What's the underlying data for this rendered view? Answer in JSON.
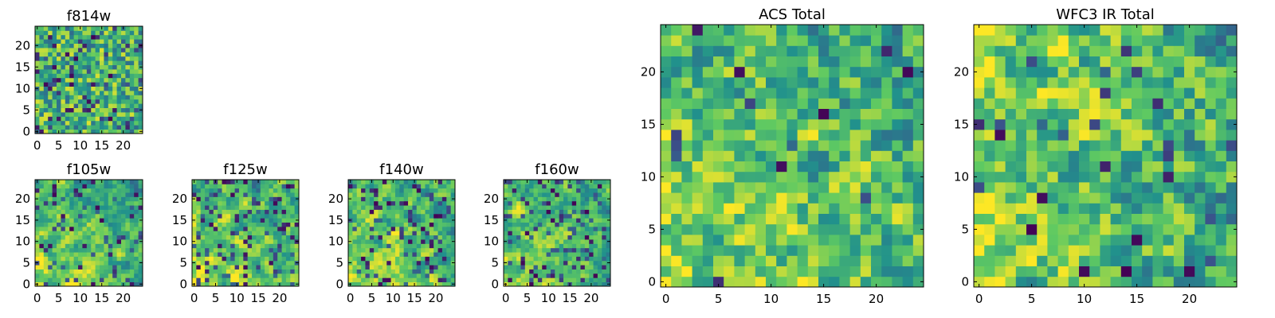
{
  "colormap": [
    "#440154",
    "#3b528b",
    "#21918c",
    "#5ec962",
    "#fde725"
  ],
  "chart_data": [
    {
      "type": "heatmap",
      "title": "f814w",
      "grid": false,
      "xlim": [
        -0.5,
        24.5
      ],
      "ylim": [
        -0.5,
        24.5
      ],
      "size": 25,
      "xticks": [
        "0",
        "5",
        "10",
        "15",
        "20"
      ],
      "yticks": [
        "0",
        "5",
        "10",
        "15",
        "20"
      ],
      "texture": "noisy",
      "smooth": 0.0,
      "seed": 11,
      "darkness": 0.1,
      "bright_corner": "none"
    },
    {
      "type": "heatmap",
      "title": "f105w",
      "grid": false,
      "xlim": [
        -0.5,
        24.5
      ],
      "ylim": [
        -0.5,
        24.5
      ],
      "size": 25,
      "xticks": [
        "0",
        "5",
        "10",
        "15",
        "20"
      ],
      "yticks": [
        "0",
        "5",
        "10",
        "15",
        "20"
      ],
      "texture": "smooth",
      "smooth": 0.55,
      "seed": 23,
      "darkness": 0.12,
      "bright_corner": "bottom-left"
    },
    {
      "type": "heatmap",
      "title": "f125w",
      "grid": false,
      "xlim": [
        -0.5,
        24.5
      ],
      "ylim": [
        -0.5,
        24.5
      ],
      "size": 25,
      "xticks": [
        "0",
        "5",
        "10",
        "15",
        "20"
      ],
      "yticks": [
        "0",
        "5",
        "10",
        "15",
        "20"
      ],
      "texture": "smooth",
      "smooth": 0.5,
      "seed": 37,
      "darkness": 0.14,
      "bright_corner": "bottom-left"
    },
    {
      "type": "heatmap",
      "title": "f140w",
      "grid": false,
      "xlim": [
        -0.5,
        24.5
      ],
      "ylim": [
        -0.5,
        24.5
      ],
      "size": 25,
      "xticks": [
        "0",
        "5",
        "10",
        "15",
        "20"
      ],
      "yticks": [
        "0",
        "5",
        "10",
        "15",
        "20"
      ],
      "texture": "smooth",
      "smooth": 0.5,
      "seed": 41,
      "darkness": 0.14,
      "bright_corner": "bottom-left"
    },
    {
      "type": "heatmap",
      "title": "f160w",
      "grid": false,
      "xlim": [
        -0.5,
        24.5
      ],
      "ylim": [
        -0.5,
        24.5
      ],
      "size": 25,
      "xticks": [
        "0",
        "5",
        "10",
        "15",
        "20"
      ],
      "yticks": [
        "0",
        "5",
        "10",
        "15",
        "20"
      ],
      "texture": "smooth",
      "smooth": 0.55,
      "seed": 53,
      "darkness": 0.16,
      "bright_corner": "bottom-left"
    },
    {
      "type": "heatmap",
      "title": "ACS Total",
      "grid": false,
      "xlim": [
        -0.5,
        24.5
      ],
      "ylim": [
        -0.5,
        24.5
      ],
      "size": 25,
      "xticks": [
        "0",
        "5",
        "10",
        "15",
        "20"
      ],
      "yticks": [
        "0",
        "5",
        "10",
        "15",
        "20"
      ],
      "texture": "blocky",
      "smooth": 0.15,
      "seed": 67,
      "darkness": 0.05,
      "bright_corner": "bottom-left"
    },
    {
      "type": "heatmap",
      "title": "WFC3 IR Total",
      "grid": false,
      "xlim": [
        -0.5,
        24.5
      ],
      "ylim": [
        -0.5,
        24.5
      ],
      "size": 25,
      "xticks": [
        "0",
        "5",
        "10",
        "15",
        "20"
      ],
      "yticks": [
        "0",
        "5",
        "10",
        "15",
        "20"
      ],
      "texture": "blocky",
      "smooth": 0.15,
      "seed": 79,
      "darkness": 0.05,
      "bright_corner": "left"
    }
  ]
}
